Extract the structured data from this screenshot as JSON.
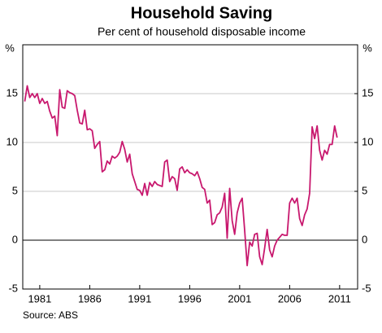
{
  "chart_data": {
    "type": "line",
    "title": "Household Saving",
    "subtitle": "Per cent of household disposable income",
    "y_label": "%",
    "y2_label": "%",
    "source": "Source: ABS",
    "color": "#c8186e",
    "grid": true,
    "xlim": [
      1979.3,
      2012.8
    ],
    "xticks": [
      1981,
      1986,
      1991,
      1996,
      2001,
      2006,
      2011
    ],
    "ylim": [
      -5,
      20
    ],
    "yticks": [
      -5,
      0,
      5,
      10,
      15
    ],
    "y2lim": [
      -5,
      20
    ],
    "y2ticks": [
      -5,
      0,
      5,
      10,
      15
    ],
    "x": [
      1979.5,
      1979.75,
      1980,
      1980.25,
      1980.5,
      1980.75,
      1981,
      1981.25,
      1981.5,
      1981.75,
      1982,
      1982.25,
      1982.5,
      1982.75,
      1983,
      1983.25,
      1983.5,
      1983.75,
      1984,
      1984.25,
      1984.5,
      1984.75,
      1985,
      1985.25,
      1985.5,
      1985.75,
      1986,
      1986.25,
      1986.5,
      1986.75,
      1987,
      1987.25,
      1987.5,
      1987.75,
      1988,
      1988.25,
      1988.5,
      1988.75,
      1989,
      1989.25,
      1989.5,
      1989.75,
      1990,
      1990.25,
      1990.5,
      1990.75,
      1991,
      1991.25,
      1991.5,
      1991.75,
      1992,
      1992.25,
      1992.5,
      1992.75,
      1993,
      1993.25,
      1993.5,
      1993.75,
      1994,
      1994.25,
      1994.5,
      1994.75,
      1995,
      1995.25,
      1995.5,
      1995.75,
      1996,
      1996.25,
      1996.5,
      1996.75,
      1997,
      1997.25,
      1997.5,
      1997.75,
      1998,
      1998.25,
      1998.5,
      1998.75,
      1999,
      1999.25,
      1999.5,
      1999.75,
      2000,
      2000.25,
      2000.5,
      2000.75,
      2001,
      2001.25,
      2001.5,
      2001.75,
      2002,
      2002.25,
      2002.5,
      2002.75,
      2003,
      2003.25,
      2003.5,
      2003.75,
      2004,
      2004.25,
      2004.5,
      2004.75,
      2005,
      2005.25,
      2005.5,
      2005.75,
      2006,
      2006.25,
      2006.5,
      2006.75,
      2007,
      2007.25,
      2007.5,
      2007.75,
      2008,
      2008.25,
      2008.5,
      2008.75,
      2009,
      2009.25,
      2009.5,
      2009.75,
      2010,
      2010.25,
      2010.5,
      2010.75
    ],
    "values": [
      14.2,
      15.8,
      14.6,
      15.0,
      14.6,
      15.0,
      14.0,
      14.5,
      14.0,
      14.2,
      13.2,
      12.5,
      12.7,
      10.7,
      15.4,
      13.6,
      13.5,
      15.3,
      15.1,
      15.0,
      14.8,
      13.3,
      12.0,
      11.9,
      13.3,
      11.3,
      11.4,
      11.2,
      9.4,
      9.8,
      10.1,
      7.0,
      7.2,
      8.1,
      7.8,
      8.6,
      8.4,
      8.6,
      9.0,
      10.1,
      9.3,
      8.0,
      8.8,
      6.8,
      6.0,
      5.2,
      5.1,
      4.6,
      5.8,
      4.6,
      5.9,
      5.5,
      6.0,
      5.7,
      5.6,
      5.5,
      8.0,
      8.2,
      6.0,
      6.5,
      6.3,
      5.1,
      7.3,
      7.5,
      6.9,
      7.2,
      6.9,
      6.8,
      6.6,
      7.0,
      6.3,
      5.4,
      5.2,
      3.8,
      4.1,
      1.6,
      1.8,
      2.6,
      2.8,
      3.4,
      4.8,
      0.2,
      5.3,
      2.0,
      0.6,
      2.8,
      3.8,
      4.3,
      1.0,
      -2.6,
      -0.2,
      -0.6,
      0.6,
      0.7,
      -1.7,
      -2.5,
      -0.8,
      1.1,
      -1.0,
      -1.7,
      -0.6,
      0.0,
      0.3,
      0.6,
      0.5,
      0.5,
      3.8,
      4.3,
      3.8,
      4.3,
      2.2,
      1.5,
      2.6,
      3.2,
      4.8,
      11.6,
      10.4,
      11.7,
      9.2,
      8.2,
      9.2,
      8.8,
      9.8,
      9.8,
      11.7,
      10.5
    ]
  }
}
